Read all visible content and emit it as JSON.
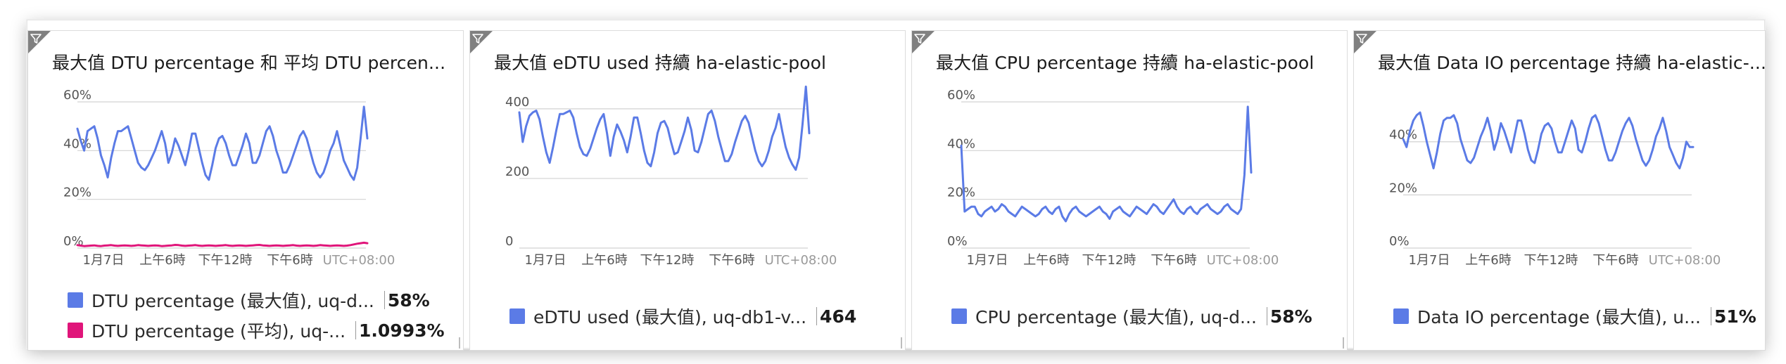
{
  "colors": {
    "series_blue": "#5b7be6",
    "series_magenta": "#e0157a",
    "grid": "#d2d2d2",
    "filter_corner": "#808080"
  },
  "tiles": [
    {
      "title": "最大值 DTU percentage 和 平均 DTU percen...",
      "filter_icon": "filter-icon",
      "legend": [
        {
          "name": "DTU percentage (最大值), uq-d...",
          "value": "58%",
          "color": "#5b7be6"
        },
        {
          "name": "DTU percentage (平均), uq-...",
          "value": "1.0993%",
          "color": "#e0157a"
        }
      ]
    },
    {
      "title": "最大值 eDTU used 持續 ha-elastic-pool",
      "filter_icon": "filter-icon",
      "legend": [
        {
          "name": "eDTU used (最大值), uq-db1-v...",
          "value": "464",
          "color": "#5b7be6"
        }
      ]
    },
    {
      "title": "最大值 CPU percentage 持續 ha-elastic-pool",
      "filter_icon": "filter-icon",
      "legend": [
        {
          "name": "CPU percentage (最大值), uq-d...",
          "value": "58%",
          "color": "#5b7be6"
        }
      ]
    },
    {
      "title": "最大值 Data IO percentage 持續 ha-elastic-...",
      "filter_icon": "filter-icon",
      "legend": [
        {
          "name": "Data IO percentage (最大值), u...",
          "value": "51%",
          "color": "#5b7be6"
        }
      ]
    }
  ],
  "chart_data": [
    {
      "type": "line",
      "title": "最大值 DTU percentage 和 平均 DTU percen...",
      "y_ticks": [
        "60%",
        "40%",
        "20%",
        "0%"
      ],
      "ylim": [
        0,
        60
      ],
      "x_ticks": [
        "1月7日",
        "上午6時",
        "下午12時",
        "下午6時",
        "UTC+08:00"
      ],
      "grid": true,
      "legend_position": "bottom",
      "series": [
        {
          "name": "DTU percentage (最大值), uq-d...",
          "color": "#5b7be6",
          "values": [
            49,
            44,
            40,
            48,
            49,
            50,
            45,
            38,
            34,
            29,
            37,
            43,
            48,
            48,
            49,
            50,
            45,
            40,
            35,
            33,
            32,
            34,
            37,
            40,
            44,
            48,
            43,
            35,
            39,
            45,
            42,
            38,
            34,
            40,
            47,
            47,
            41,
            35,
            30,
            28,
            34,
            41,
            45,
            46,
            43,
            38,
            34,
            34,
            38,
            42,
            47,
            43,
            35,
            35,
            38,
            43,
            48,
            50,
            46,
            40,
            36,
            31,
            31,
            34,
            38,
            42,
            46,
            48,
            45,
            40,
            35,
            31,
            29,
            31,
            35,
            40,
            43,
            48,
            42,
            36,
            33,
            30,
            28,
            33,
            45,
            58,
            45
          ]
        },
        {
          "name": "DTU percentage (平均), uq-...",
          "color": "#e0157a",
          "values": [
            1.2,
            1.0,
            0.8,
            0.9,
            1.0,
            1.1,
            0.9,
            0.8,
            1.0,
            1.1,
            1.2,
            1.0,
            0.9,
            1.0,
            1.1,
            1.0,
            0.9,
            1.0,
            1.2,
            1.1,
            1.0,
            0.9,
            1.0,
            1.1,
            1.0,
            0.8,
            0.9,
            1.0,
            1.1,
            1.3,
            1.2,
            1.0,
            0.9,
            1.0,
            1.1,
            1.2,
            1.0,
            0.9,
            1.0,
            1.1,
            1.0,
            0.9,
            1.0,
            1.1,
            1.2,
            1.0,
            0.9,
            1.0,
            1.1,
            1.0,
            0.9,
            1.0,
            1.1,
            1.2,
            1.3,
            1.1,
            1.0,
            0.9,
            1.0,
            1.1,
            1.0,
            0.9,
            1.0,
            1.1,
            1.2,
            1.0,
            0.9,
            1.0,
            1.1,
            1.0,
            0.9,
            1.0,
            1.2,
            1.1,
            1.0,
            0.9,
            1.0,
            1.1,
            1.0,
            0.9,
            1.0,
            1.2,
            1.5,
            1.8,
            2.0,
            2.2,
            2.0
          ]
        }
      ]
    },
    {
      "type": "line",
      "title": "最大值 eDTU used 持續 ha-elastic-pool",
      "y_ticks": [
        "400",
        "200",
        "0"
      ],
      "ylim": [
        0,
        420
      ],
      "x_ticks": [
        "1月7日",
        "上午6時",
        "下午12時",
        "下午6時",
        "UTC+08:00"
      ],
      "grid": true,
      "legend_position": "bottom",
      "series": [
        {
          "name": "eDTU used (最大值), uq-db1-v...",
          "color": "#5b7be6",
          "values": [
            390,
            305,
            350,
            380,
            390,
            395,
            370,
            320,
            275,
            245,
            290,
            340,
            385,
            385,
            390,
            395,
            375,
            330,
            290,
            270,
            265,
            285,
            315,
            345,
            370,
            385,
            330,
            265,
            320,
            355,
            335,
            310,
            275,
            320,
            375,
            375,
            330,
            280,
            245,
            235,
            275,
            330,
            360,
            365,
            345,
            305,
            270,
            275,
            305,
            335,
            375,
            340,
            280,
            275,
            305,
            345,
            385,
            395,
            365,
            320,
            285,
            250,
            250,
            270,
            305,
            335,
            365,
            380,
            360,
            320,
            280,
            250,
            235,
            250,
            280,
            320,
            345,
            385,
            335,
            290,
            260,
            240,
            225,
            260,
            355,
            464,
            330
          ]
        }
      ]
    },
    {
      "type": "line",
      "title": "最大值 CPU percentage 持續 ha-elastic-pool",
      "y_ticks": [
        "60%",
        "40%",
        "20%",
        "0%"
      ],
      "ylim": [
        0,
        60
      ],
      "x_ticks": [
        "1月7日",
        "上午6時",
        "下午12時",
        "下午6時",
        "UTC+08:00"
      ],
      "grid": true,
      "legend_position": "bottom",
      "series": [
        {
          "name": "CPU percentage (最大值), uq-d...",
          "color": "#5b7be6",
          "values": [
            42,
            15,
            16,
            17,
            17,
            14,
            13,
            15,
            16,
            17,
            15,
            16,
            18,
            17,
            15,
            14,
            13,
            15,
            17,
            16,
            15,
            14,
            13,
            14,
            16,
            17,
            15,
            14,
            16,
            17,
            13,
            11,
            14,
            16,
            17,
            15,
            14,
            13,
            14,
            15,
            16,
            17,
            15,
            14,
            12,
            15,
            16,
            17,
            15,
            14,
            13,
            15,
            17,
            16,
            15,
            14,
            16,
            18,
            17,
            15,
            14,
            16,
            18,
            20,
            17,
            15,
            14,
            16,
            17,
            15,
            14,
            16,
            17,
            18,
            16,
            15,
            14,
            15,
            17,
            18,
            16,
            15,
            14,
            16,
            30,
            58,
            31
          ]
        }
      ]
    },
    {
      "type": "line",
      "title": "最大值 Data IO percentage 持續 ha-elastic-...",
      "y_ticks": [
        "40%",
        "20%",
        "0%"
      ],
      "ylim": [
        0,
        55
      ],
      "x_ticks": [
        "1月7日",
        "上午6時",
        "下午12時",
        "下午6時",
        "UTC+08:00"
      ],
      "grid": true,
      "legend_position": "bottom",
      "series": [
        {
          "name": "Data IO percentage (最大值), u...",
          "color": "#5b7be6",
          "values": [
            41,
            38,
            44,
            48,
            50,
            51,
            46,
            40,
            35,
            30,
            36,
            43,
            48,
            49,
            49,
            50,
            47,
            41,
            37,
            33,
            32,
            34,
            38,
            42,
            45,
            49,
            44,
            37,
            41,
            47,
            44,
            40,
            36,
            42,
            48,
            48,
            43,
            37,
            33,
            32,
            37,
            43,
            46,
            47,
            45,
            40,
            36,
            36,
            40,
            44,
            48,
            45,
            37,
            36,
            40,
            45,
            49,
            50,
            47,
            42,
            37,
            33,
            33,
            36,
            40,
            44,
            47,
            49,
            46,
            41,
            37,
            33,
            31,
            33,
            37,
            42,
            45,
            49,
            44,
            38,
            35,
            32,
            30,
            34,
            40,
            38,
            38
          ]
        }
      ]
    }
  ]
}
